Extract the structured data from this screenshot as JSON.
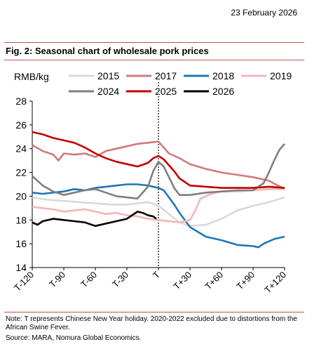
{
  "header": {
    "date": "23 February 2026"
  },
  "figure": {
    "title": "Fig. 2: Seasonal chart of wholesale pork prices"
  },
  "footer": {
    "note": "Note: T represents Chinese New Year holiday. 2020-2022 excluded due to distortions from the African Swine Fever.",
    "source": "Source: MARA, Nomura Global Economics."
  },
  "chart_data": {
    "type": "line",
    "ylabel": "RMB/kg",
    "xlabel": "",
    "title": "",
    "xlim": [
      -120,
      120
    ],
    "ylim": [
      14,
      28
    ],
    "x_ticks": [
      -120,
      -90,
      -60,
      -30,
      0,
      30,
      60,
      90,
      120
    ],
    "x_tick_labels": [
      "T-120",
      "T-90",
      "T-60",
      "T-30",
      "T",
      "T+30",
      "T+60",
      "T+90",
      "T+120"
    ],
    "y_ticks": [
      14,
      16,
      18,
      20,
      22,
      24,
      26,
      28
    ],
    "vline_x": 0,
    "legend_position": "top",
    "series": [
      {
        "name": "2015",
        "color": "#d9d9d9",
        "x": [
          -120,
          -105,
          -90,
          -75,
          -60,
          -45,
          -30,
          -20,
          -10,
          0,
          10,
          20,
          30,
          45,
          60,
          75,
          90,
          105,
          120
        ],
        "y": [
          19.9,
          19.7,
          19.6,
          19.5,
          19.4,
          19.3,
          19.3,
          19.4,
          19.5,
          19.2,
          18.5,
          17.8,
          17.5,
          17.6,
          18.1,
          18.8,
          19.2,
          19.5,
          19.9
        ]
      },
      {
        "name": "2017",
        "color": "#d07a78",
        "x": [
          -120,
          -110,
          -100,
          -95,
          -90,
          -80,
          -70,
          -60,
          -50,
          -40,
          -30,
          -20,
          -10,
          0,
          5,
          10,
          20,
          30,
          45,
          60,
          75,
          90,
          105,
          120
        ],
        "y": [
          24.3,
          23.8,
          23.5,
          23.0,
          23.6,
          23.5,
          23.6,
          23.3,
          23.8,
          24.0,
          24.2,
          24.4,
          24.5,
          24.6,
          24.1,
          23.6,
          23.2,
          22.7,
          22.3,
          22.0,
          21.8,
          21.6,
          21.3,
          20.6
        ]
      },
      {
        "name": "2018",
        "color": "#1f77b4",
        "x": [
          -120,
          -110,
          -100,
          -90,
          -80,
          -70,
          -60,
          -50,
          -40,
          -30,
          -20,
          -10,
          0,
          5,
          10,
          15,
          20,
          30,
          45,
          60,
          75,
          90,
          95,
          100,
          110,
          120
        ],
        "y": [
          20.3,
          20.2,
          20.3,
          20.4,
          20.6,
          20.5,
          20.7,
          20.8,
          20.9,
          21.0,
          21.0,
          20.9,
          20.7,
          20.5,
          19.9,
          19.3,
          18.6,
          17.4,
          16.6,
          16.3,
          15.9,
          15.8,
          15.7,
          16.0,
          16.4,
          16.6
        ]
      },
      {
        "name": "2019",
        "color": "#f2b6b6",
        "x": [
          -120,
          -110,
          -100,
          -90,
          -80,
          -70,
          -60,
          -50,
          -40,
          -30,
          -20,
          -10,
          0,
          10,
          20,
          30,
          35,
          40,
          50,
          60,
          75,
          90,
          105,
          120
        ],
        "y": [
          19.1,
          19.0,
          18.9,
          18.7,
          18.8,
          18.9,
          18.7,
          18.5,
          18.6,
          18.4,
          18.3,
          18.1,
          18.0,
          17.9,
          17.8,
          18.0,
          18.8,
          19.8,
          20.2,
          20.4,
          20.4,
          20.5,
          20.6,
          20.6
        ]
      },
      {
        "name": "2024",
        "color": "#7f7f7f",
        "x": [
          -120,
          -110,
          -100,
          -90,
          -80,
          -70,
          -60,
          -50,
          -40,
          -30,
          -20,
          -10,
          -5,
          0,
          5,
          10,
          15,
          20,
          30,
          45,
          60,
          75,
          90,
          100,
          105,
          110,
          115,
          120
        ],
        "y": [
          21.7,
          20.9,
          20.4,
          20.1,
          20.3,
          20.5,
          20.6,
          20.3,
          20.0,
          19.9,
          19.8,
          20.8,
          22.1,
          22.9,
          22.5,
          21.6,
          20.7,
          20.1,
          20.1,
          20.3,
          20.4,
          20.5,
          20.5,
          21.1,
          22.0,
          23.0,
          23.9,
          24.4
        ]
      },
      {
        "name": "2025",
        "color": "#c00000",
        "x": [
          -120,
          -110,
          -100,
          -90,
          -80,
          -70,
          -60,
          -50,
          -40,
          -30,
          -20,
          -10,
          -5,
          0,
          5,
          10,
          15,
          20,
          30,
          45,
          60,
          75,
          90,
          105,
          120
        ],
        "y": [
          25.4,
          25.2,
          24.9,
          24.7,
          24.5,
          24.1,
          23.6,
          23.2,
          22.9,
          22.7,
          22.5,
          22.8,
          23.2,
          23.4,
          23.1,
          22.6,
          22.1,
          21.5,
          20.9,
          20.8,
          20.7,
          20.7,
          20.7,
          20.8,
          20.7
        ]
      },
      {
        "name": "2026",
        "color": "#000000",
        "x": [
          -120,
          -115,
          -110,
          -100,
          -90,
          -80,
          -70,
          -60,
          -50,
          -40,
          -30,
          -25,
          -20,
          -15,
          -10,
          -5,
          -2
        ],
        "y": [
          17.8,
          17.6,
          17.9,
          18.1,
          18.0,
          17.9,
          17.8,
          17.5,
          17.7,
          17.9,
          18.1,
          18.4,
          18.7,
          18.6,
          18.4,
          18.3,
          18.1
        ]
      }
    ]
  }
}
